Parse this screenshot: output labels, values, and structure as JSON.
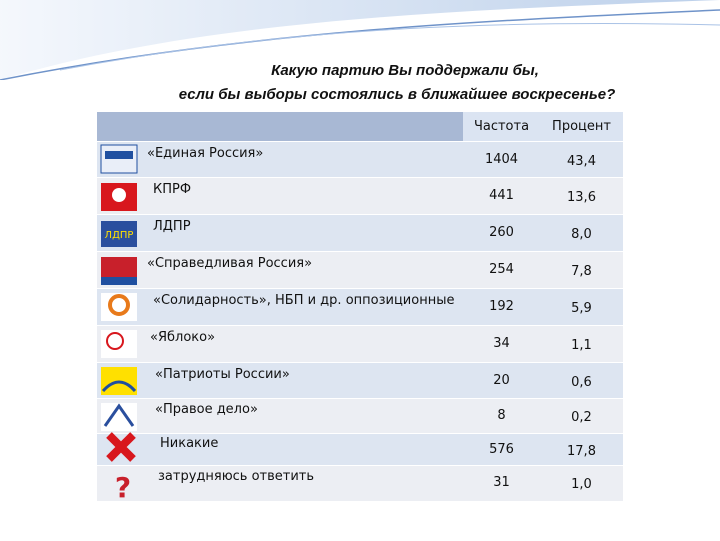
{
  "title": {
    "line1": "Какую партию Вы поддержали бы,",
    "line2": "если бы выборы состоялись в ближайшее воскресенье?"
  },
  "table": {
    "header": [
      "Частота",
      "Процент"
    ],
    "rows": [
      [
        "«Единая Россия»",
        "1404",
        "43,4"
      ],
      [
        "КПРФ",
        "441",
        "13,6"
      ],
      [
        "ЛДПР",
        "260",
        "8,0"
      ],
      [
        "«Справедливая Россия»",
        "254",
        "7,8"
      ],
      [
        "«Солидарность», НБП и др. оппозиционные",
        "192",
        "5,9"
      ],
      [
        "«Яблоко»",
        "34",
        "1,1"
      ],
      [
        "«Патриоты России»",
        "20",
        "0,6"
      ],
      [
        "«Правое дело»",
        "8",
        "0,2"
      ],
      [
        "Никакие",
        "576",
        "17,8"
      ],
      [
        "затрудняюсь ответить",
        "31",
        "1,0"
      ]
    ]
  }
}
